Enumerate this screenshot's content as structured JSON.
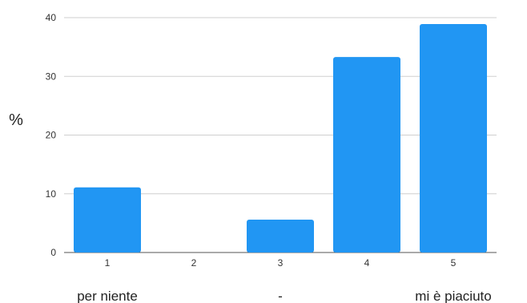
{
  "chart_data": {
    "type": "bar",
    "categories": [
      "1",
      "2",
      "3",
      "4",
      "5"
    ],
    "values": [
      11.1,
      0,
      5.6,
      33.3,
      38.9
    ],
    "ylabel": "%",
    "ylim": [
      0,
      40
    ],
    "yticks": [
      0,
      10,
      20,
      30,
      40
    ],
    "grid": true,
    "bar_color": "#2196f3",
    "annotations": [
      {
        "text": "per niente",
        "category": "1"
      },
      {
        "text": "-",
        "category": "3"
      },
      {
        "text": "mi è piaciuto",
        "category": "5"
      }
    ]
  }
}
